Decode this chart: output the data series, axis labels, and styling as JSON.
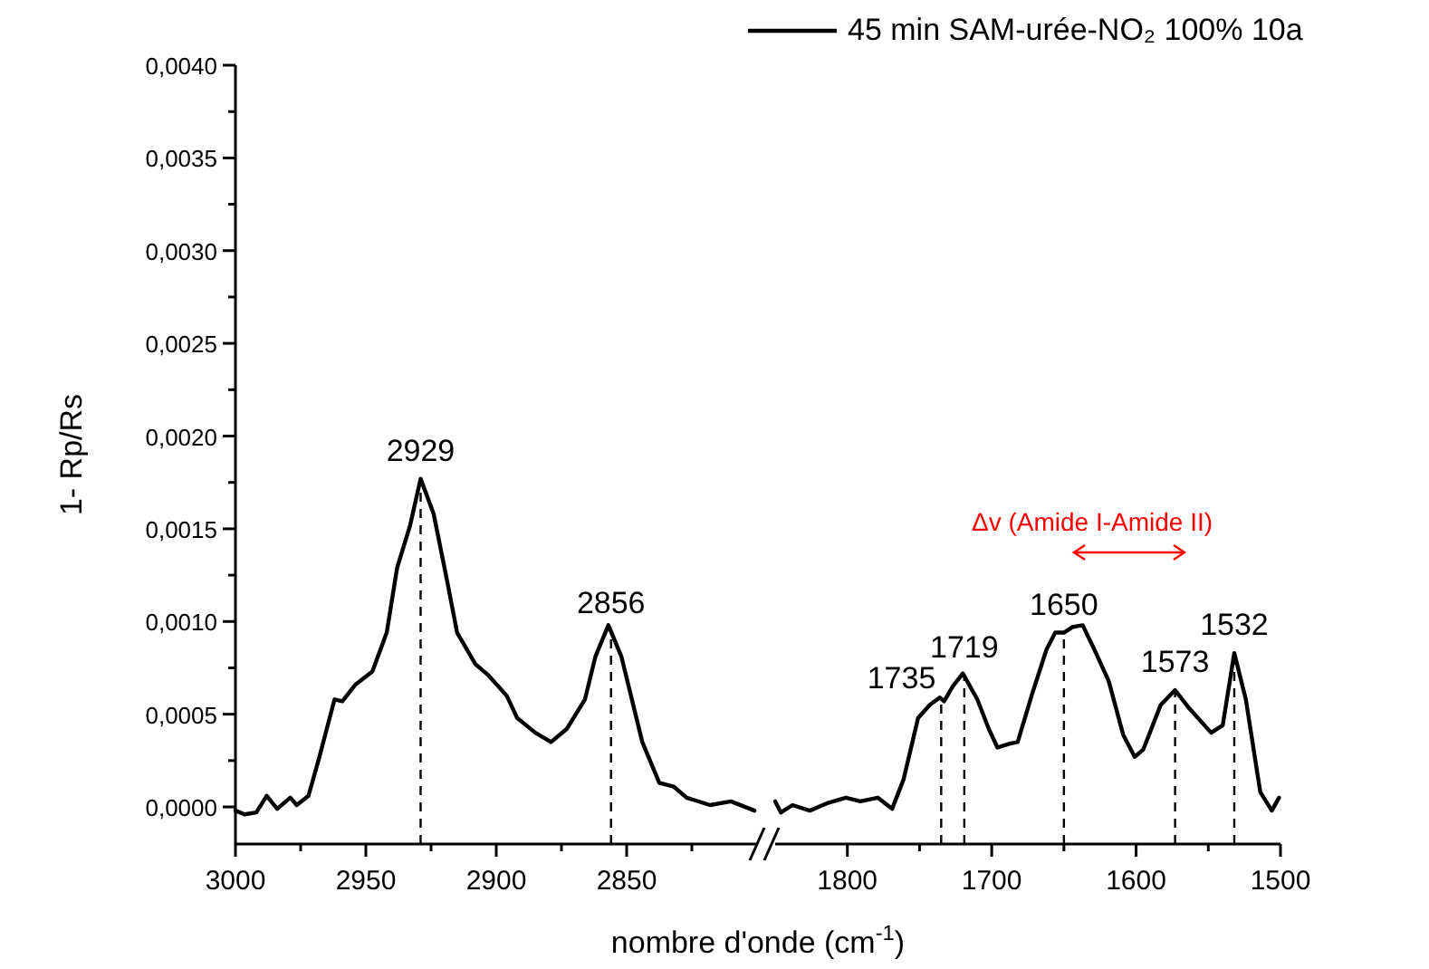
{
  "chart_data": [
    {
      "type": "line",
      "xlabel": "nombre d'onde (cm$^{-1}$)",
      "ylabel": "1- Rp/Rs",
      "xlim": [
        3000,
        2800
      ],
      "xticks": [
        3000,
        {
          "value": 2975,
          "label": null
        },
        2950,
        {
          "value": 2925,
          "label": null
        },
        2900,
        {
          "value": 2875,
          "label": null
        },
        2850,
        {
          "value": 2825,
          "label": null
        }
      ],
      "ylim": [
        -0.0002,
        0.004
      ],
      "yticks": [
        {
          "value": 0,
          "label": "0,0000"
        },
        {
          "value": 0.00025,
          "label": null
        },
        {
          "value": 0.0005,
          "label": "0,0005"
        },
        {
          "value": 0.00075,
          "label": null
        },
        {
          "value": 0.001,
          "label": "0,0010"
        },
        {
          "value": 0.00125,
          "label": null
        },
        {
          "value": 0.0015,
          "label": "0,0015"
        },
        {
          "value": 0.00175,
          "label": null
        },
        {
          "value": 0.002,
          "label": "0,0020"
        },
        {
          "value": 0.00225,
          "label": null
        },
        {
          "value": 0.0025,
          "label": "0,0025"
        },
        {
          "value": 0.00275,
          "label": null
        },
        {
          "value": 0.003,
          "label": "0,0030"
        },
        {
          "value": 0.00325,
          "label": null
        },
        {
          "value": 0.0035,
          "label": "0,0035"
        },
        {
          "value": 0.00375,
          "label": null
        },
        {
          "value": 0.004,
          "label": "0,0040"
        }
      ],
      "series": [
        {
          "color": "#000000",
          "x": [
            3000,
            2996.5,
            2992,
            2988,
            2984,
            2979,
            2976.5,
            2972,
            2968,
            2962,
            2959,
            2954,
            2947.5,
            2942,
            2938,
            2933,
            2929,
            2924,
            2919,
            2915,
            2908,
            2903,
            2896,
            2892,
            2885,
            2879,
            2873,
            2866,
            2862,
            2857,
            2852,
            2844,
            2837.5,
            2832,
            2827,
            2818,
            2810,
            2801
          ],
          "values": [
            -2e-05,
            -4e-05,
            -3e-05,
            6e-05,
            -1e-05,
            5e-05,
            1e-05,
            6e-05,
            0.00026,
            0.00058,
            0.00057,
            0.00066,
            0.00073,
            0.00094,
            0.00129,
            0.00152,
            0.00177,
            0.00158,
            0.00123,
            0.00094,
            0.00077,
            0.00071,
            0.0006,
            0.00048,
            0.0004,
            0.00035,
            0.00042,
            0.00058,
            0.00081,
            0.00098,
            0.00081,
            0.00035,
            0.00013,
            0.00011,
            5e-05,
            1e-05,
            3e-05,
            -2e-05
          ]
        }
      ],
      "ref_lines": [
        {
          "axis": "x",
          "value": 2929,
          "label": "2929",
          "line_style": "dashed"
        },
        {
          "axis": "x",
          "value": 2856,
          "label": "2856",
          "line_style": "dashed"
        }
      ]
    },
    {
      "type": "line",
      "tick_labels": "x",
      "legend": "top right",
      "xlim": [
        1850,
        1500
      ],
      "xticks": [
        1800,
        {
          "value": 1750,
          "label": null
        },
        1700,
        {
          "value": 1650,
          "label": null
        },
        1600,
        {
          "value": 1550,
          "label": null
        },
        1500
      ],
      "ylim": [
        -0.0002,
        0.004
      ],
      "series": [
        {
          "name": "45 min SAM-urée-NO₂ 100% 10a",
          "color": "#000000",
          "x": [
            1850,
            1846,
            1838,
            1826,
            1814,
            1801,
            1791,
            1779,
            1769,
            1761,
            1751,
            1743,
            1736,
            1733,
            1727,
            1720,
            1710,
            1702,
            1696,
            1688,
            1682,
            1672,
            1662,
            1656,
            1650,
            1644,
            1637,
            1629,
            1619,
            1609,
            1601,
            1595,
            1583,
            1573,
            1563,
            1548,
            1540,
            1532,
            1524,
            1514,
            1506,
            1501
          ],
          "values": [
            3e-05,
            -3e-05,
            1e-05,
            -2e-05,
            2e-05,
            5e-05,
            3e-05,
            5e-05,
            -1e-05,
            0.00015,
            0.00048,
            0.00055,
            0.00059,
            0.00057,
            0.00065,
            0.00072,
            0.00058,
            0.00042,
            0.00032,
            0.00034,
            0.00035,
            0.00061,
            0.00085,
            0.00094,
            0.00094,
            0.00097,
            0.00098,
            0.00085,
            0.00068,
            0.00039,
            0.00027,
            0.00031,
            0.00055,
            0.00063,
            0.00053,
            0.0004,
            0.00044,
            0.00083,
            0.00058,
            8e-05,
            -2e-05,
            5e-05
          ]
        }
      ],
      "ref_lines": [
        {
          "axis": "x",
          "value": 1735,
          "label": "1735",
          "line_style": "dashed"
        },
        {
          "axis": "x",
          "value": 1719,
          "label": "1719",
          "line_style": "dashed"
        },
        {
          "axis": "x",
          "value": 1650,
          "label": "1650",
          "line_style": "dashed"
        },
        {
          "axis": "x",
          "value": 1573,
          "label": "1573",
          "line_style": "dashed"
        },
        {
          "axis": "x",
          "value": 1532,
          "label": "1532",
          "line_style": "dashed"
        }
      ],
      "annotations": [
        "Δv (Amide I-Amide II)"
      ]
    }
  ]
}
